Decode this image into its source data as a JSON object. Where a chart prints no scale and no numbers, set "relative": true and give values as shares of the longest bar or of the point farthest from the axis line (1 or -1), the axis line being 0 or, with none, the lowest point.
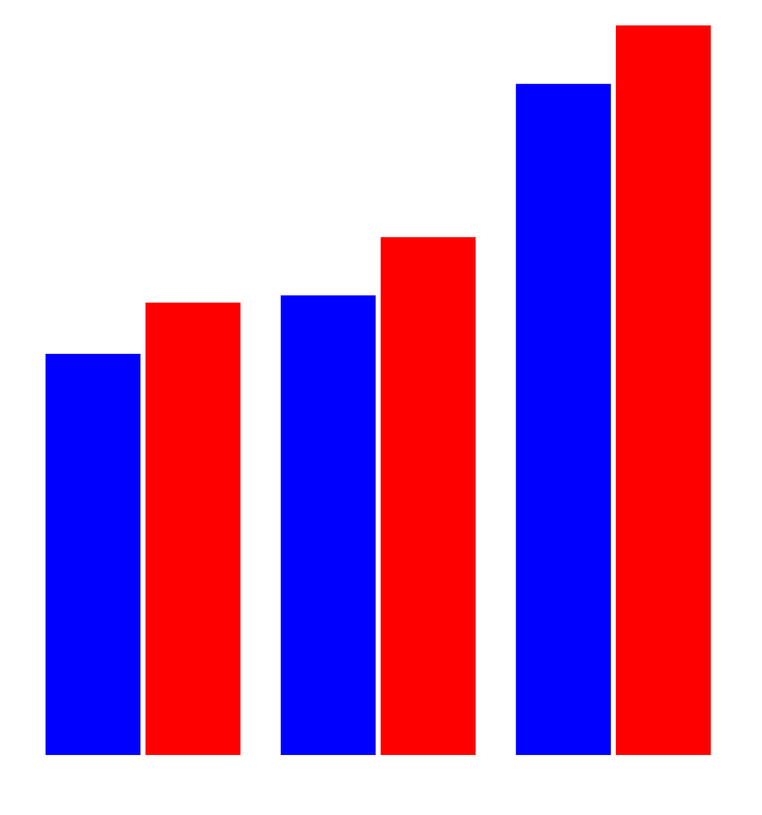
{
  "chart_data": {
    "type": "bar",
    "relative": true,
    "categories": [
      null,
      null,
      null
    ],
    "grid": false,
    "legend": false,
    "series": [
      {
        "color": "#0000ff",
        "values": [
          0.55,
          0.63,
          0.92
        ]
      },
      {
        "color": "#ff0000",
        "values": [
          0.62,
          0.71,
          1
        ]
      }
    ]
  }
}
